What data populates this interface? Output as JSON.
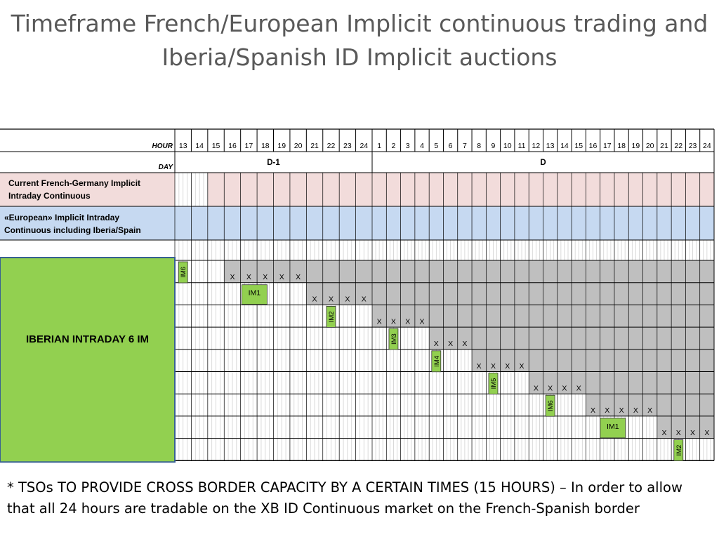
{
  "title": {
    "line1": "Timeframe French/European Implicit continuous trading and",
    "line2": "Iberia/Spanish ID Implicit auctions"
  },
  "table": {
    "hour_label": "HOUR",
    "day_label": "DAY",
    "hours": [
      "13",
      "14",
      "15",
      "16",
      "17",
      "18",
      "19",
      "20",
      "21",
      "22",
      "23",
      "24",
      "1",
      "2",
      "3",
      "4",
      "5",
      "6",
      "7",
      "8",
      "9",
      "10",
      "11",
      "12",
      "13",
      "14",
      "15",
      "16",
      "17",
      "18",
      "19",
      "20",
      "21",
      "22",
      "23",
      "24"
    ],
    "day_groups": [
      {
        "label": "D-1",
        "start": 0,
        "end": 11
      },
      {
        "label": "D",
        "start": 12,
        "end": 35
      }
    ],
    "band_rows": [
      {
        "label": "Current French-Germany Implicit Intraday Continuous",
        "bg": "#f2dcdb",
        "label_bg": "#f2dcdb",
        "start": 2
      },
      {
        "label": "«European» Implicit Intraday Continuous including Iberia/Spain",
        "bg": "#c6d9f1",
        "label_bg": "#c6d9f1",
        "start": 0
      }
    ],
    "iberian_label": "IBERIAN INTRADAY 6 IM",
    "x_mark": "X",
    "session_rows": [
      {
        "gray_from": 3,
        "im": {
          "label": "IM6",
          "col": 0,
          "vertical": true
        },
        "x_cols": [
          3,
          4,
          5,
          6,
          7
        ]
      },
      {
        "gray_from": 8,
        "im": {
          "label": "IM1",
          "col": 4,
          "vertical": false
        },
        "x_cols": [
          8,
          9,
          10,
          11
        ]
      },
      {
        "gray_from": 12,
        "im": {
          "label": "IM2",
          "col": 9,
          "vertical": true
        },
        "x_cols": [
          12,
          13,
          14,
          15
        ]
      },
      {
        "gray_from": 16,
        "im": {
          "label": "IM3",
          "col": 13,
          "vertical": true
        },
        "x_cols": [
          16,
          17,
          18
        ]
      },
      {
        "gray_from": 19,
        "im": {
          "label": "IM4",
          "col": 16,
          "vertical": true
        },
        "x_cols": [
          19,
          20,
          21,
          22
        ]
      },
      {
        "gray_from": 23,
        "im": {
          "label": "IM5",
          "col": 20,
          "vertical": true
        },
        "x_cols": [
          23,
          24,
          25,
          26
        ]
      },
      {
        "gray_from": 27,
        "im": {
          "label": "IM6",
          "col": 24,
          "vertical": true
        },
        "x_cols": [
          27,
          28,
          29,
          30,
          31
        ]
      },
      {
        "gray_from": 32,
        "im": {
          "label": "IM1",
          "col": 28,
          "vertical": false
        },
        "x_cols": [
          32,
          33,
          34,
          35
        ]
      },
      {
        "gray_from": 36,
        "im": {
          "label": "IM2",
          "col": 33,
          "vertical": true
        },
        "x_cols": []
      }
    ]
  },
  "colors": {
    "green": "#92d050",
    "gray": "#bfbfbf",
    "pink": "#f2dcdb",
    "blue": "#c6d9f1",
    "border": "#000000",
    "hatch": "#d0d0d0",
    "frame_blue": "#376092"
  },
  "footnote": {
    "line1": "* TSOs TO PROVIDE CROSS BORDER CAPACITY BY A CERTAIN TIMES (15 HOURS) – In order to allow",
    "line2": "that all 24 hours are tradable on the XB ID Continuous market on the French-Spanish border"
  }
}
